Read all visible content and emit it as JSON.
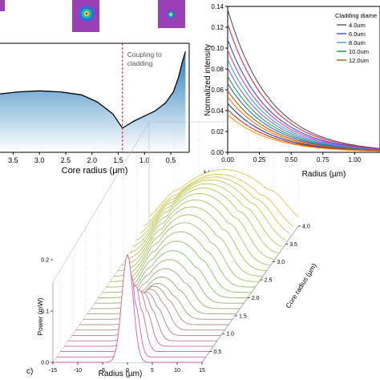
{
  "chart_data": [
    {
      "type": "area",
      "panel": "a",
      "xlabel": "Core radius (µm)",
      "xticks": [
        "3.5",
        "3.0",
        "2.5",
        "2.0",
        "1.5",
        "1.0",
        "0.5"
      ],
      "x_reversed": true,
      "xlim": [
        3.75,
        0.15
      ],
      "annotation": "Coupling to cladding",
      "annotation_x": 1.42,
      "x": [
        3.75,
        3.4,
        3.0,
        2.6,
        2.2,
        1.9,
        1.6,
        1.42,
        1.2,
        1.0,
        0.8,
        0.6,
        0.45,
        0.35,
        0.28,
        0.22
      ],
      "y": [
        0.58,
        0.6,
        0.61,
        0.6,
        0.57,
        0.5,
        0.38,
        0.24,
        0.31,
        0.36,
        0.41,
        0.49,
        0.6,
        0.75,
        0.9,
        1.0
      ],
      "ylim": [
        0,
        1.05
      ],
      "colors": {
        "curve": "#000000",
        "fill_top": "#2a7fbf",
        "fill_bottom": "#ffffff",
        "annotation_line": "#cc1f1f"
      }
    },
    {
      "type": "line",
      "panel": "b",
      "panel_label": "b)",
      "xlabel": "Radius (µm)",
      "ylabel": "Normalized intensity",
      "xlim": [
        0,
        1.2
      ],
      "ylim": [
        0,
        0.14
      ],
      "xticks": [
        "0.00",
        "0.25",
        "0.50",
        "0.75",
        "1.00"
      ],
      "yticks": [
        "0.00",
        "0.02",
        "0.04",
        "0.06",
        "0.08",
        "0.10",
        "0.12",
        "0.14"
      ],
      "legend_title": "Cladding diame",
      "legend_position": "top-right",
      "series": [
        {
          "name": "4.0um",
          "y0": 0.137,
          "color": "#555555"
        },
        {
          "name": "",
          "y0": 0.123,
          "color": "#e0245e"
        },
        {
          "name": "6.0um",
          "y0": 0.108,
          "color": "#3b4fd6"
        },
        {
          "name": "",
          "y0": 0.098,
          "color": "#e83aa8"
        },
        {
          "name": "8.0um",
          "y0": 0.089,
          "color": "#2bb0c9"
        },
        {
          "name": "",
          "y0": 0.081,
          "color": "#8b5cf6"
        },
        {
          "name": "10.0um",
          "y0": 0.073,
          "color": "#16a34a"
        },
        {
          "name": "",
          "y0": 0.066,
          "color": "#2563eb"
        },
        {
          "name": "12.0um",
          "y0": 0.059,
          "color": "#a16207"
        },
        {
          "name": "",
          "y0": 0.053,
          "color": "#f97316"
        },
        {
          "name": "",
          "y0": 0.047,
          "color": "#1e3a8a"
        },
        {
          "name": "",
          "y0": 0.041,
          "color": "#dc2626"
        },
        {
          "name": "",
          "y0": 0.036,
          "color": "#f59e0b"
        }
      ],
      "decay_per_um": 3.0
    },
    {
      "type": "line",
      "panel": "c",
      "panel_label": "c)",
      "xlabel": "Radius (µm)",
      "ylabel": "Power (mW)",
      "zlabel": "Core radius (µm)",
      "xlim": [
        -15,
        15
      ],
      "ylim": [
        0,
        0.25
      ],
      "xticks": [
        "-15",
        "-10",
        "-5",
        "0",
        "5",
        "10",
        "15"
      ],
      "yticks": [
        "0.0",
        "0.1",
        "0.2"
      ],
      "zticks": [
        "0.5",
        "1.0",
        "1.5",
        "2.0",
        "2.5",
        "3.0",
        "3.5",
        "4.0"
      ],
      "zlim": [
        0.2,
        4.0
      ],
      "core_radius": [
        0.2,
        0.35,
        0.5,
        0.65,
        0.8,
        0.95,
        1.1,
        1.25,
        1.4,
        1.55,
        1.7,
        1.85,
        2.0,
        2.15,
        2.3,
        2.45,
        2.6,
        2.75,
        2.9,
        3.05,
        3.2,
        3.35,
        3.5,
        3.65,
        3.8,
        4.0
      ],
      "peak_power": [
        0.21,
        0.16,
        0.13,
        0.11,
        0.095,
        0.085,
        0.08,
        0.075,
        0.07,
        0.072,
        0.078,
        0.085,
        0.092,
        0.1,
        0.108,
        0.115,
        0.12,
        0.125,
        0.128,
        0.13,
        0.13,
        0.128,
        0.125,
        0.12,
        0.115,
        0.11
      ],
      "colors": {
        "front": "#d65aa0",
        "mid": "#8fbf6a",
        "back": "#d8c84a"
      }
    }
  ]
}
